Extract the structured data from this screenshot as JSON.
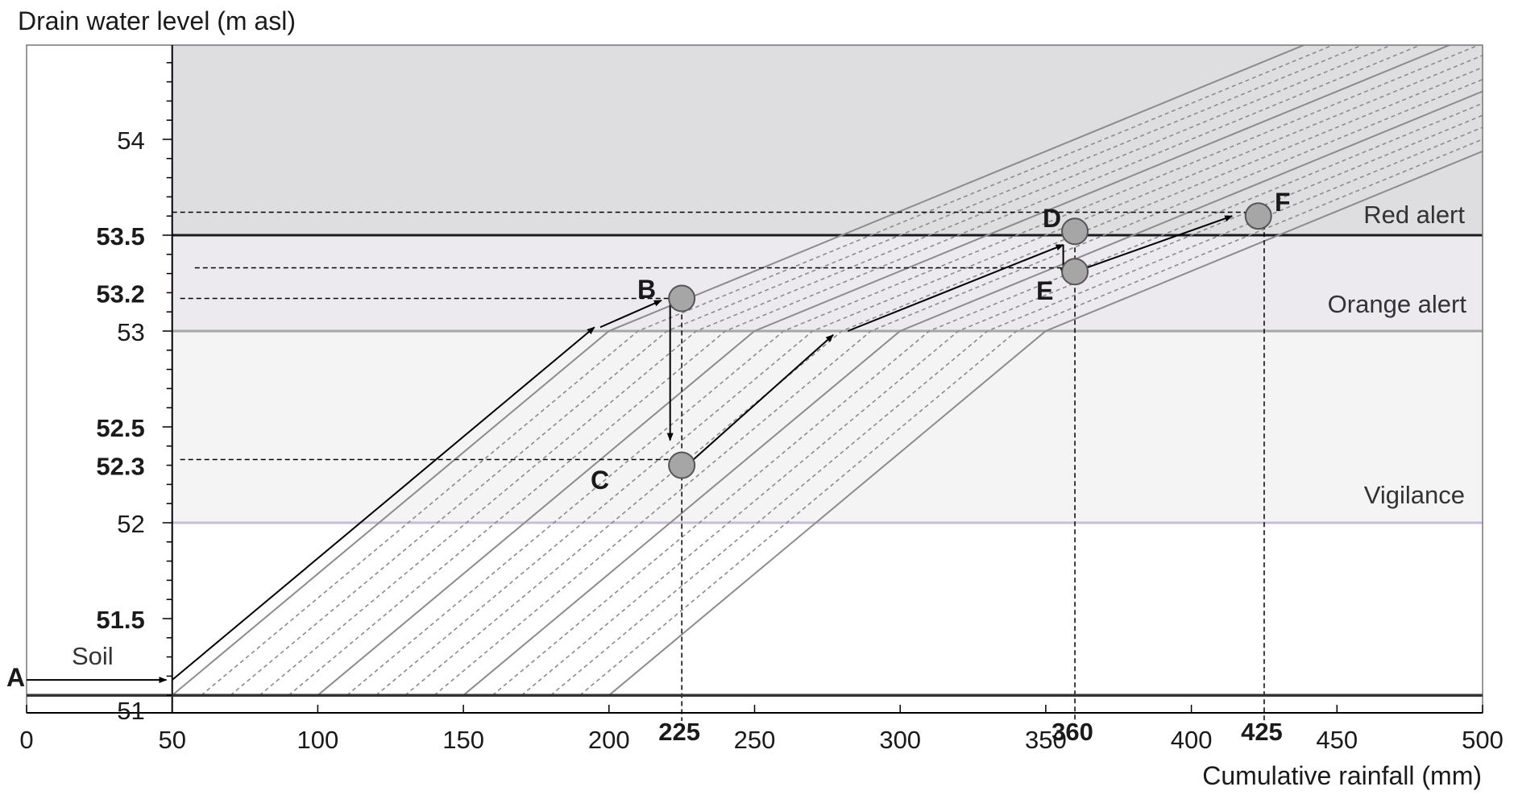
{
  "chart_data": {
    "type": "line",
    "ylabel": "Drain water level (m asl)",
    "xlabel": "Cumulative rainfall (mm)",
    "xlim": [
      0,
      500
    ],
    "ylim": [
      51.1,
      54.5
    ],
    "x_ticks": [
      0,
      50,
      100,
      150,
      200,
      250,
      300,
      350,
      400,
      450,
      500
    ],
    "x_ticks_bold": [
      225,
      360,
      425
    ],
    "y_ticks": [
      51,
      51.5,
      52,
      52.5,
      53,
      54
    ],
    "y_ticks_bold": [
      51.5,
      52.3,
      52.5,
      53.2,
      53.5
    ],
    "zones": [
      {
        "name": "Vigilance",
        "from": 52.0,
        "to": 53.0,
        "color": "#f4f4f5",
        "line_color": "#c8bcd6"
      },
      {
        "name": "Orange alert",
        "from": 53.0,
        "to": 53.5,
        "color": "#eceaee",
        "line_color": "#a6a6a6"
      },
      {
        "name": "Red alert",
        "from": 53.5,
        "to": 54.5,
        "color": "#dedde0",
        "line_color": "#1a1a1a"
      }
    ],
    "soil_level": 51.1,
    "soil_label": "Soil",
    "curve_family": {
      "x_start_first": 50,
      "x_start_last": 200,
      "x_start_step": 10,
      "knee_level": 53.0,
      "slope_low_per_mm": 0.01267,
      "slope_high_per_mm": 0.00625,
      "solid_every": 5,
      "color": "#8c8c8c"
    },
    "points": [
      {
        "label": "B",
        "x": 225,
        "y": 53.17
      },
      {
        "label": "C",
        "x": 225,
        "y": 52.3
      },
      {
        "label": "D",
        "x": 360,
        "y": 53.52
      },
      {
        "label": "E",
        "x": 360,
        "y": 53.31
      },
      {
        "label": "F",
        "x": 423,
        "y": 53.6
      }
    ],
    "path_start_label": "A",
    "path": [
      [
        [
          0,
          51.18
        ],
        [
          48,
          51.18
        ]
      ],
      [
        [
          50,
          51.18
        ],
        [
          195,
          53.02
        ]
      ],
      [
        [
          197,
          53.02
        ],
        [
          218,
          53.16
        ]
      ],
      [
        [
          221,
          53.16
        ],
        [
          221,
          52.43
        ]
      ],
      [
        [
          229,
          52.33
        ],
        [
          277,
          52.98
        ]
      ],
      [
        [
          282,
          53.0
        ],
        [
          356,
          53.45
        ]
      ],
      [
        [
          356,
          53.45
        ],
        [
          356,
          53.29
        ]
      ],
      [
        [
          364,
          53.33
        ],
        [
          414,
          53.6
        ]
      ]
    ],
    "dashed_guides": [
      {
        "x1": 50,
        "y": 53.62,
        "x2": 423
      },
      {
        "x1": 55,
        "y": 53.33,
        "x2": 360
      },
      {
        "x1": 50,
        "y": 53.17,
        "x2": 225
      },
      {
        "x1": 50,
        "y": 52.33,
        "x2": 225
      }
    ]
  }
}
